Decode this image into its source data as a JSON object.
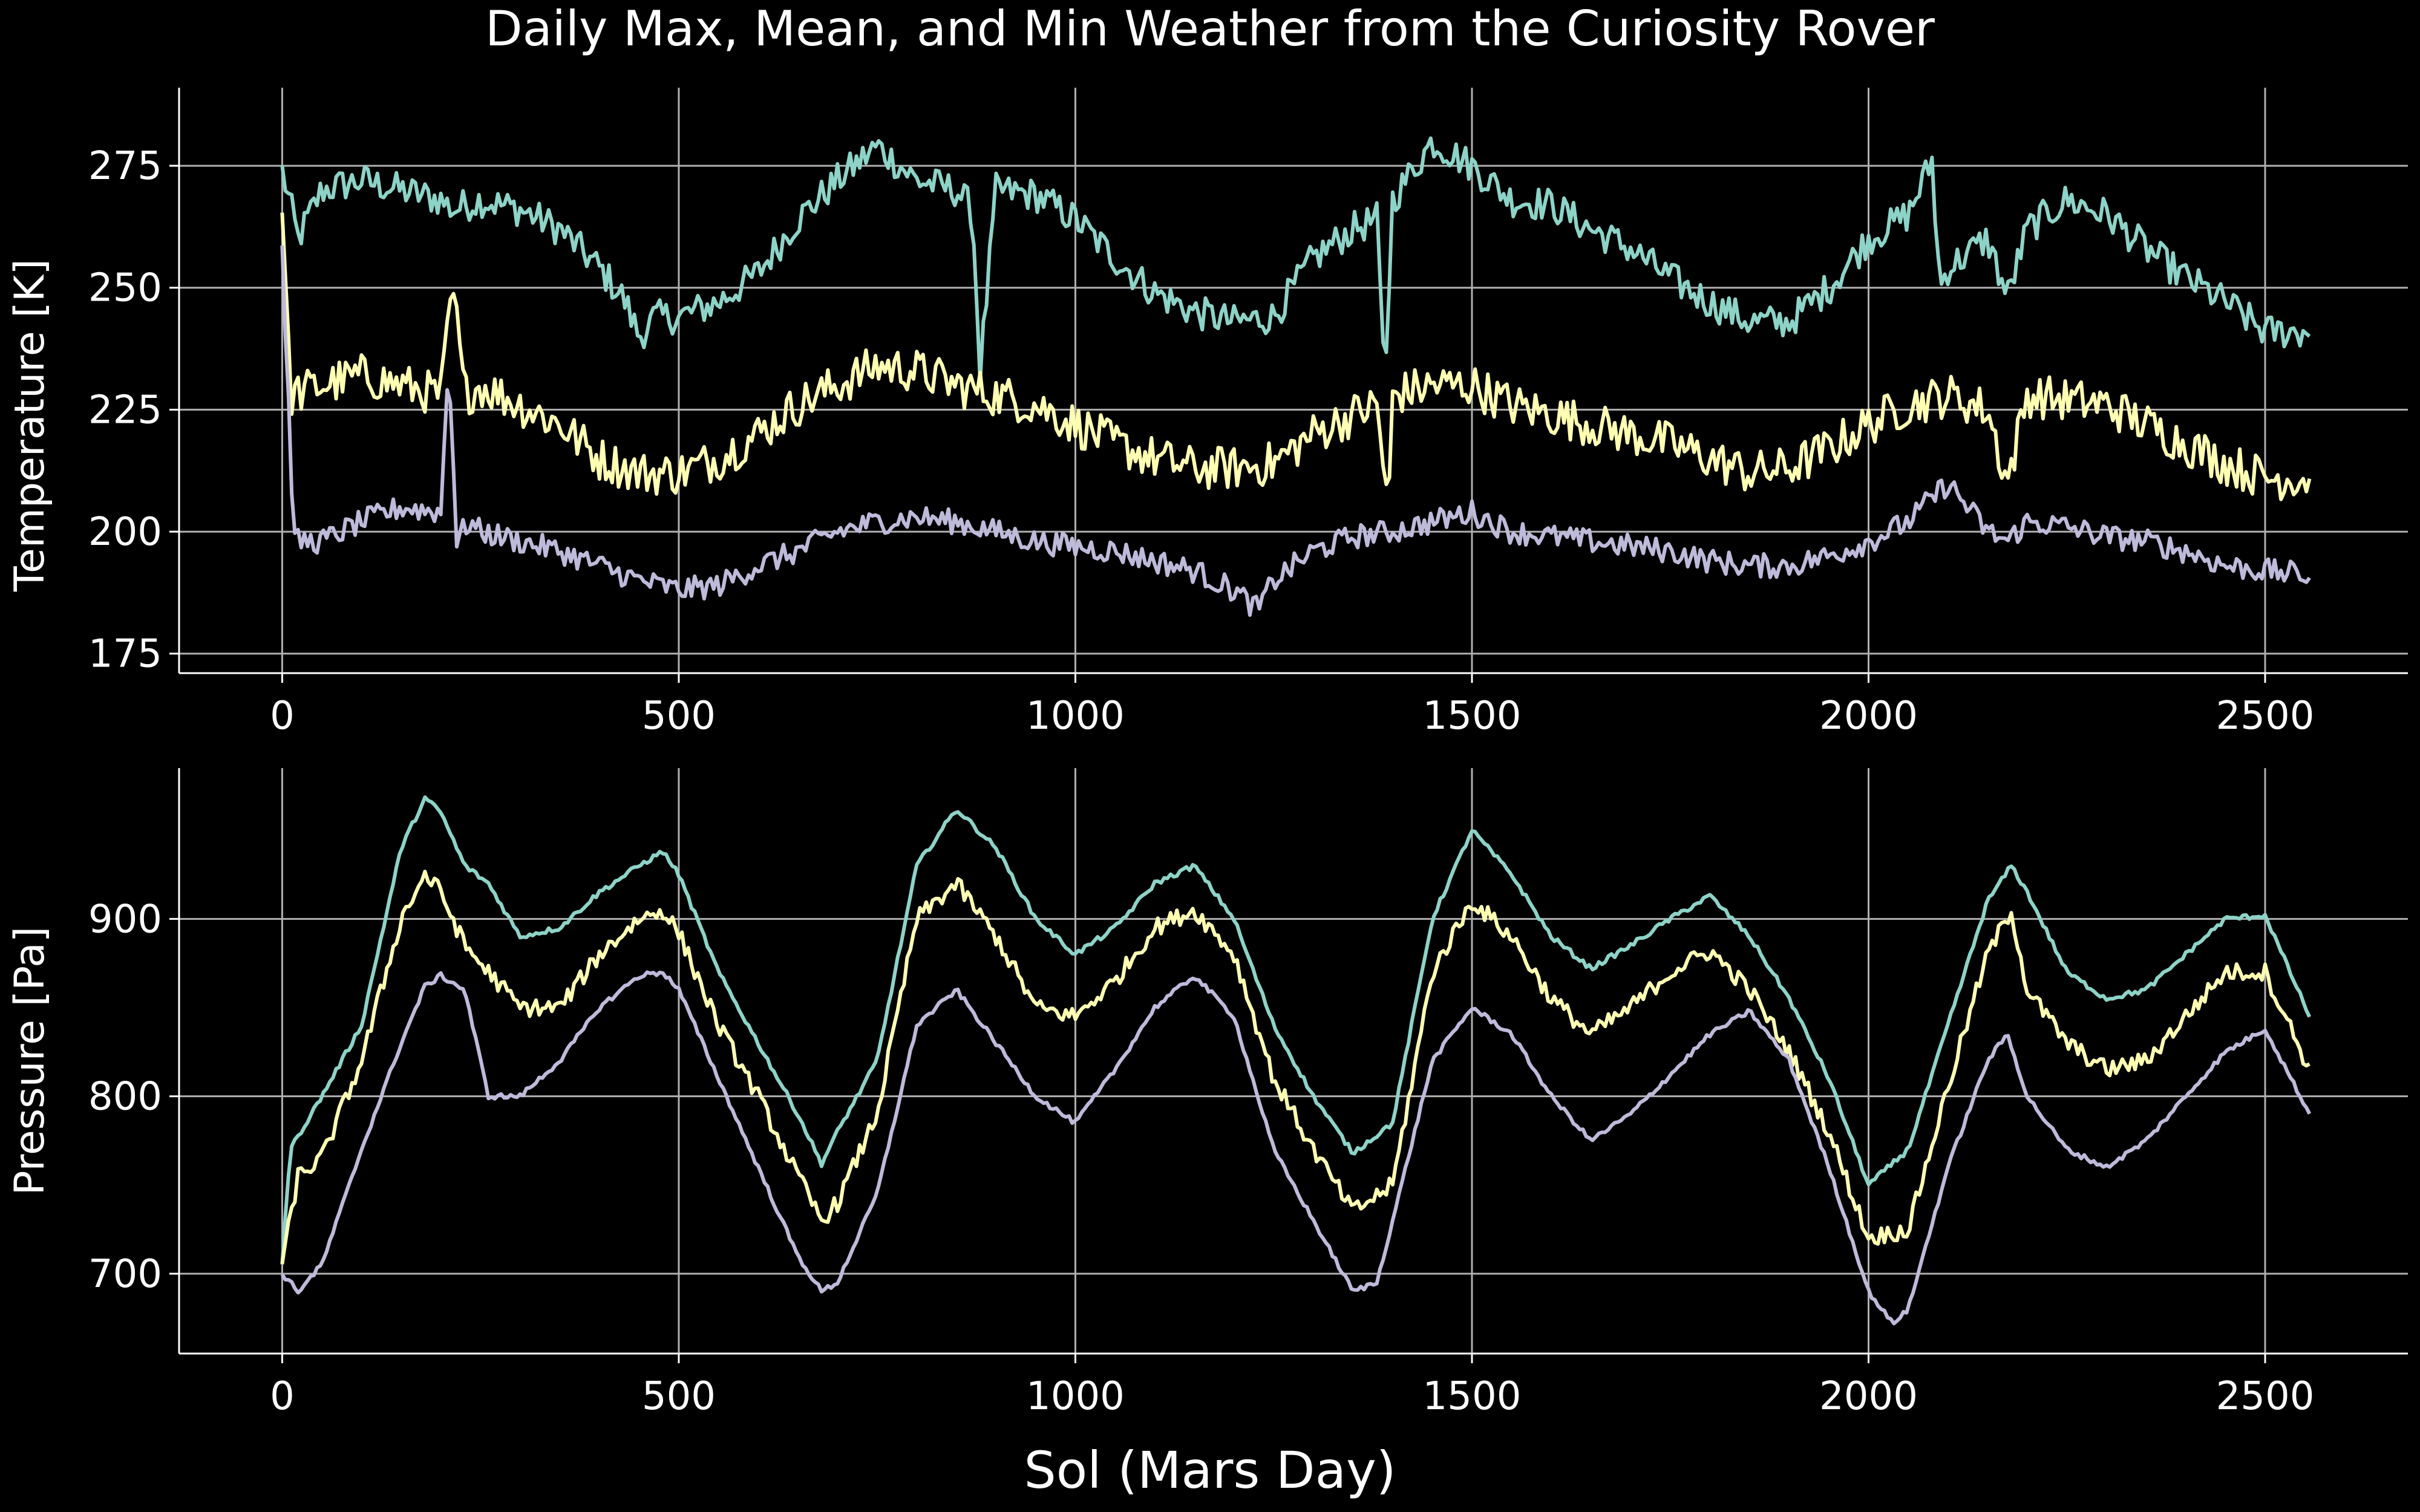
{
  "chart_data": {
    "type": "line",
    "title": "Daily Max, Mean, and Min Weather from the Curiosity Rover",
    "xlabel": "Sol (Mars Day)",
    "xlim": [
      -130,
      2680
    ],
    "grid": true,
    "background": "#000000",
    "colors": {
      "max": "#8dd3c7",
      "mean": "#ffffb3",
      "min": "#bebada",
      "text": "#ffffff",
      "grid": "#b0b0b0"
    },
    "x_ticks": [
      0,
      500,
      1000,
      1500,
      2000,
      2500
    ],
    "panels": [
      {
        "name": "temperature",
        "ylabel": "Temperature [K]",
        "ylim": [
          171,
          291
        ],
        "y_ticks": [
          175,
          200,
          225,
          250,
          275
        ],
        "series": [
          {
            "key": "max",
            "x": [
              0,
              20,
              50,
              100,
              150,
              200,
              215,
              250,
              300,
              350,
              400,
              430,
              450,
              470,
              500,
              550,
              600,
              650,
              700,
              750,
              800,
              850,
              870,
              880,
              900,
              950,
              1000,
              1050,
              1100,
              1150,
              1200,
              1250,
              1300,
              1350,
              1380,
              1390,
              1400,
              1450,
              1500,
              1550,
              1600,
              1650,
              1700,
              1750,
              1800,
              1850,
              1900,
              1950,
              2000,
              2050,
              2080,
              2090,
              2100,
              2150,
              2175,
              2200,
              2250,
              2300,
              2350,
              2400,
              2450,
              2500,
              2556
            ],
            "y": [
              274,
              260,
              270,
              272,
              270,
              268,
              266,
              268,
              266,
              262,
              254,
              248,
              240,
              244,
              244,
              247,
              253,
              264,
              272,
              279,
              272,
              270,
              266,
              233,
              270,
              269,
              264,
              256,
              249,
              245,
              243,
              244,
              256,
              262,
              264,
              230,
              268,
              280,
              275,
              268,
              267,
              262,
              258,
              252,
              247,
              243,
              243,
              250,
              260,
              265,
              276,
              250,
              254,
              260,
              248,
              262,
              268,
              265,
              258,
              252,
              247,
              241,
              241
            ]
          },
          {
            "key": "mean",
            "x": [
              0,
              10,
              50,
              100,
              150,
              200,
              215,
              230,
              250,
              300,
              350,
              400,
              450,
              500,
              550,
              600,
              650,
              700,
              750,
              800,
              850,
              900,
              950,
              1000,
              1050,
              1100,
              1150,
              1200,
              1250,
              1300,
              1350,
              1380,
              1395,
              1400,
              1450,
              1500,
              1550,
              1600,
              1650,
              1700,
              1750,
              1800,
              1850,
              1900,
              1950,
              2000,
              2050,
              2100,
              2150,
              2175,
              2200,
              2250,
              2300,
              2350,
              2400,
              2450,
              2500,
              2556
            ],
            "y": [
              268,
              228,
              230,
              232,
              230,
              228,
              250,
              228,
              230,
              226,
              222,
              215,
              212,
              212,
              215,
              220,
              226,
              230,
              234,
              233,
              230,
              228,
              226,
              222,
              218,
              215,
              213,
              213,
              214,
              220,
              224,
              226,
              204,
              228,
              230,
              230,
              226,
              224,
              222,
              220,
              218,
              215,
              212,
              213,
              217,
              222,
              226,
              228,
              225,
              210,
              228,
              227,
              226,
              222,
              218,
              214,
              211,
              211
            ]
          },
          {
            "key": "min",
            "x": [
              0,
              15,
              50,
              100,
              150,
              200,
              210,
              220,
              235,
              250,
              300,
              350,
              400,
              450,
              500,
              550,
              600,
              650,
              700,
              750,
              800,
              850,
              900,
              950,
              1000,
              1050,
              1100,
              1150,
              1200,
              1230,
              1250,
              1300,
              1350,
              1400,
              1450,
              1500,
              1550,
              1600,
              1650,
              1700,
              1750,
              1800,
              1850,
              1900,
              1950,
              2000,
              2050,
              2100,
              2150,
              2175,
              2200,
              2250,
              2300,
              2350,
              2400,
              2450,
              2500,
              2556
            ],
            "y": [
              258,
              198,
              198,
              202,
              205,
              204,
              236,
              198,
              202,
              200,
              198,
              196,
              193,
              190,
              188,
              189,
              193,
              196,
              200,
              202,
              203,
              202,
              200,
              198,
              197,
              196,
              194,
              192,
              188,
              184,
              190,
              196,
              199,
              200,
              202,
              204,
              200,
              199,
              198,
              197,
              196,
              194,
              193,
              193,
              195,
              198,
              202,
              210,
              200,
              198,
              202,
              201,
              199,
              198,
              196,
              193,
              192,
              191
            ]
          }
        ]
      },
      {
        "name": "pressure",
        "ylabel": "Pressure [Pa]",
        "ylim": [
          655,
          985
        ],
        "y_ticks": [
          700,
          800,
          900
        ],
        "series": [
          {
            "key": "max",
            "x": [
              0,
              10,
              50,
              100,
              150,
              180,
              200,
              230,
              260,
              300,
              350,
              400,
              450,
              480,
              500,
              550,
              600,
              650,
              680,
              700,
              750,
              800,
              850,
              900,
              950,
              1000,
              1050,
              1100,
              1150,
              1200,
              1250,
              1300,
              1350,
              1400,
              1450,
              1500,
              1550,
              1600,
              1650,
              1700,
              1750,
              1800,
              1850,
              1900,
              1950,
              2000,
              2050,
              2100,
              2150,
              2180,
              2200,
              2250,
              2300,
              2350,
              2400,
              2450,
              2500,
              2556
            ],
            "y": [
              705,
              770,
              800,
              840,
              940,
              968,
              960,
              930,
              920,
              890,
              895,
              915,
              930,
              938,
              925,
              870,
              830,
              790,
              762,
              780,
              820,
              930,
              962,
              940,
              900,
              880,
              895,
              920,
              930,
              900,
              840,
              800,
              768,
              785,
              900,
              950,
              925,
              890,
              872,
              885,
              900,
              913,
              890,
              855,
              810,
              750,
              770,
              840,
              910,
              930,
              915,
              870,
              855,
              860,
              880,
              900,
              902,
              845
            ]
          },
          {
            "key": "mean",
            "x": [
              0,
              20,
              50,
              100,
              150,
              180,
              200,
              230,
              260,
              300,
              350,
              400,
              450,
              480,
              500,
              550,
              600,
              650,
              680,
              700,
              750,
              800,
              850,
              900,
              950,
              1000,
              1050,
              1100,
              1150,
              1200,
              1250,
              1300,
              1350,
              1400,
              1450,
              1500,
              1550,
              1600,
              1650,
              1700,
              1750,
              1800,
              1850,
              1900,
              1950,
              2000,
              2050,
              2100,
              2150,
              2180,
              2200,
              2250,
              2300,
              2350,
              2400,
              2450,
              2500,
              2556
            ],
            "y": [
              705,
              755,
              765,
              820,
              900,
              925,
              915,
              885,
              870,
              850,
              850,
              880,
              900,
              905,
              892,
              840,
              800,
              755,
              730,
              740,
              790,
              900,
              920,
              890,
              850,
              845,
              865,
              895,
              905,
              880,
              810,
              770,
              735,
              750,
              870,
              910,
              890,
              855,
              835,
              850,
              870,
              882,
              860,
              825,
              780,
              720,
              725,
              805,
              880,
              905,
              860,
              830,
              815,
              820,
              845,
              870,
              870,
              815
            ]
          },
          {
            "key": "min",
            "x": [
              0,
              20,
              50,
              100,
              150,
              180,
              200,
              230,
              260,
              300,
              350,
              400,
              450,
              480,
              500,
              550,
              600,
              650,
              680,
              700,
              750,
              800,
              850,
              900,
              950,
              1000,
              1050,
              1100,
              1150,
              1200,
              1250,
              1300,
              1350,
              1380,
              1400,
              1450,
              1500,
              1550,
              1600,
              1650,
              1700,
              1750,
              1800,
              1850,
              1900,
              1950,
              2000,
              2030,
              2050,
              2100,
              2150,
              2175,
              2200,
              2250,
              2300,
              2350,
              2400,
              2450,
              2500,
              2556
            ],
            "y": [
              700,
              690,
              705,
              770,
              830,
              862,
              868,
              860,
              800,
              800,
              820,
              850,
              868,
              870,
              860,
              810,
              760,
              710,
              690,
              695,
              745,
              840,
              860,
              830,
              800,
              785,
              815,
              850,
              868,
              845,
              770,
              730,
              690,
              695,
              730,
              820,
              850,
              835,
              800,
              775,
              790,
              812,
              835,
              848,
              820,
              760,
              690,
              672,
              680,
              760,
              820,
              835,
              800,
              770,
              760,
              775,
              800,
              825,
              838,
              790
            ]
          }
        ]
      }
    ]
  }
}
